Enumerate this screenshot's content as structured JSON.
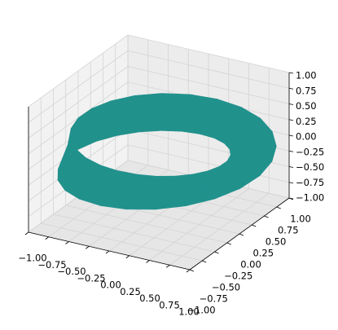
{
  "chart_data": {
    "type": "trisurf3d",
    "colormap": "viridis",
    "grid": true,
    "xlim": [
      -1,
      1
    ],
    "ylim": [
      -1,
      1
    ],
    "zlim": [
      -1,
      1
    ],
    "xticks": [
      {
        "value": -1,
        "label": "−1.00"
      },
      {
        "value": -0.75,
        "label": "−0.75"
      },
      {
        "value": -0.5,
        "label": "−0.50"
      },
      {
        "value": -0.25,
        "label": "−0.25"
      },
      {
        "value": 0,
        "label": "0.00"
      },
      {
        "value": 0.25,
        "label": "0.25"
      },
      {
        "value": 0.5,
        "label": "0.50"
      },
      {
        "value": 0.75,
        "label": "0.75"
      },
      {
        "value": 1,
        "label": "1.00"
      }
    ],
    "yticks": [
      {
        "value": -1,
        "label": "−1.00"
      },
      {
        "value": -0.75,
        "label": "−0.75"
      },
      {
        "value": -0.5,
        "label": "−0.50"
      },
      {
        "value": -0.25,
        "label": "−0.25"
      },
      {
        "value": 0,
        "label": "0.00"
      },
      {
        "value": 0.25,
        "label": "0.25"
      },
      {
        "value": 0.5,
        "label": "0.50"
      },
      {
        "value": 0.75,
        "label": "0.75"
      },
      {
        "value": 1,
        "label": "1.00"
      }
    ],
    "zticks": [
      {
        "value": -1,
        "label": "−1.00"
      },
      {
        "value": -0.75,
        "label": "−0.75"
      },
      {
        "value": -0.5,
        "label": "−0.50"
      },
      {
        "value": -0.25,
        "label": "−0.25"
      },
      {
        "value": 0,
        "label": "0.00"
      },
      {
        "value": 0.25,
        "label": "0.25"
      },
      {
        "value": 0.5,
        "label": "0.50"
      },
      {
        "value": 0.75,
        "label": "0.75"
      },
      {
        "value": 1,
        "label": "1.00"
      }
    ],
    "x": [
      [
        1.25,
        1.205,
        1.075,
        0.87,
        0.608,
        0.31,
        0,
        -0.298,
        -0.563,
        -0.775,
        -0.922,
        -0.997,
        -1,
        -0.934,
        -0.81,
        -0.639,
        -0.438,
        -0.219,
        0,
        0.208,
        0.392,
        0.544,
        0.657,
        0.727
      ],
      [
        0.75,
        0.727,
        0.657,
        0.544,
        0.392,
        0.208,
        0,
        -0.219,
        -0.438,
        -0.639,
        -0.81,
        -0.934,
        -1,
        -0.997,
        -0.922,
        -0.775,
        -0.563,
        -0.298,
        0,
        0.31,
        0.608,
        0.87,
        1.075,
        1.205
      ]
    ],
    "y": [
      [
        0,
        0.323,
        0.621,
        0.87,
        1.054,
        1.158,
        1.177,
        1.113,
        0.974,
        0.775,
        0.532,
        0.267,
        0,
        -0.25,
        -0.468,
        -0.639,
        -0.758,
        -0.819,
        -0.823,
        -0.774,
        -0.679,
        -0.544,
        -0.379,
        -0.195
      ],
      [
        0,
        0.195,
        0.379,
        0.544,
        0.679,
        0.774,
        0.823,
        0.819,
        0.758,
        0.639,
        0.468,
        0.25,
        0,
        -0.267,
        -0.532,
        -0.775,
        -0.974,
        -1.113,
        -1.177,
        -1.158,
        -1.054,
        -0.87,
        -0.621,
        -0.323
      ]
    ],
    "z": [
      [
        0,
        0.033,
        0.065,
        0.096,
        0.125,
        0.152,
        0.177,
        0.198,
        0.217,
        0.231,
        0.242,
        0.248,
        0.25,
        0.248,
        0.242,
        0.231,
        0.217,
        0.198,
        0.177,
        0.152,
        0.125,
        0.096,
        0.065,
        0.033
      ],
      [
        0,
        -0.033,
        -0.065,
        -0.096,
        -0.125,
        -0.152,
        -0.177,
        -0.198,
        -0.217,
        -0.231,
        -0.242,
        -0.248,
        -0.25,
        -0.248,
        -0.242,
        -0.231,
        -0.217,
        -0.198,
        -0.177,
        -0.152,
        -0.125,
        -0.096,
        -0.065,
        -0.033
      ]
    ]
  }
}
